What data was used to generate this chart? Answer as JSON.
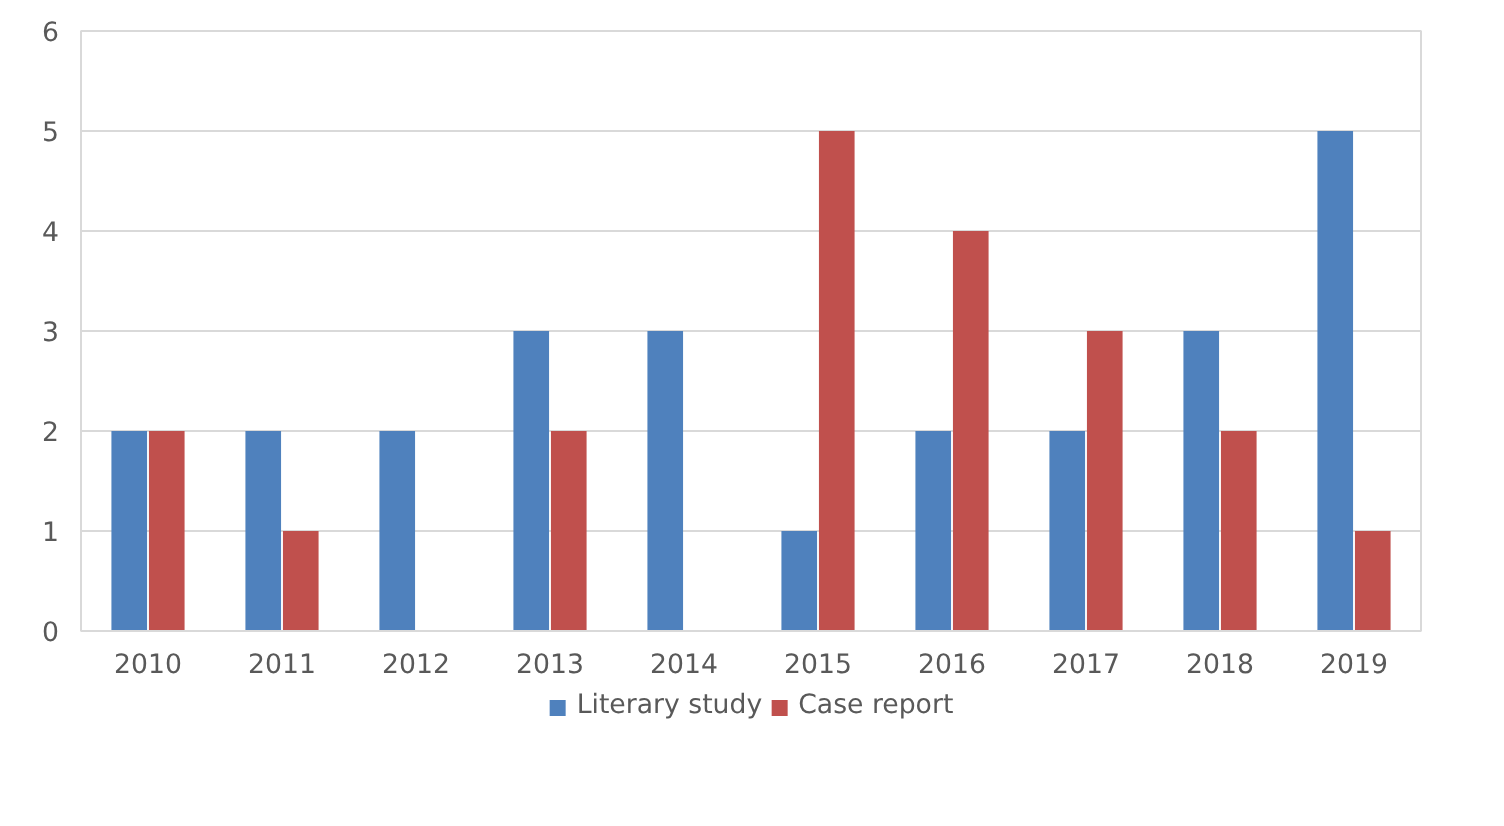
{
  "chart_data": {
    "type": "bar",
    "categories": [
      "2010",
      "2011",
      "2012",
      "2013",
      "2014",
      "2015",
      "2016",
      "2017",
      "2018",
      "2019"
    ],
    "series": [
      {
        "name": "Literary study",
        "color": "#4f81bd",
        "values": [
          2,
          2,
          2,
          3,
          3,
          1,
          2,
          2,
          3,
          5
        ]
      },
      {
        "name": "Case report",
        "color": "#c0504d",
        "values": [
          2,
          1,
          0,
          2,
          0,
          5,
          4,
          3,
          2,
          1
        ]
      }
    ],
    "ylim": [
      0,
      6
    ],
    "yticks": [
      0,
      1,
      2,
      3,
      4,
      5,
      6
    ],
    "grid": "y",
    "legend": "bottom"
  }
}
